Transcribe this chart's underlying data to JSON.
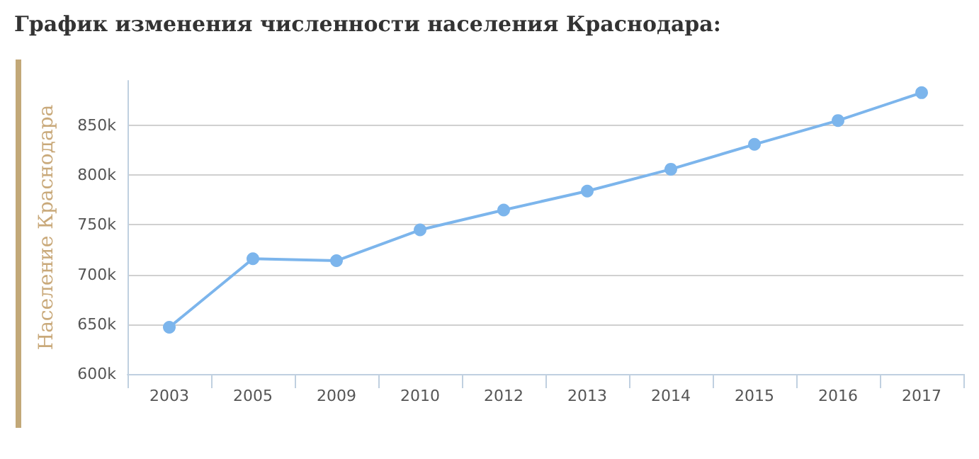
{
  "chart_data": {
    "type": "line",
    "title": "График изменения численности населения Краснодара:",
    "ylabel": "Население Краснодара",
    "categories": [
      "2003",
      "2005",
      "2009",
      "2010",
      "2012",
      "2013",
      "2014",
      "2015",
      "2016",
      "2017"
    ],
    "series": [
      {
        "color": "#7cb5ec",
        "values": [
          647000,
          716000,
          714000,
          745000,
          765000,
          784000,
          806000,
          831000,
          855000,
          883000
        ]
      }
    ],
    "ylim": [
      600000,
      895000
    ],
    "yticks": [
      {
        "value": 600000,
        "label": "600k"
      },
      {
        "value": 650000,
        "label": "650k"
      },
      {
        "value": 700000,
        "label": "700k"
      },
      {
        "value": 750000,
        "label": "750k"
      },
      {
        "value": 800000,
        "label": "800k"
      },
      {
        "value": 850000,
        "label": "850k"
      }
    ],
    "grid": "y",
    "marker": "circle",
    "line_style": "solid"
  }
}
